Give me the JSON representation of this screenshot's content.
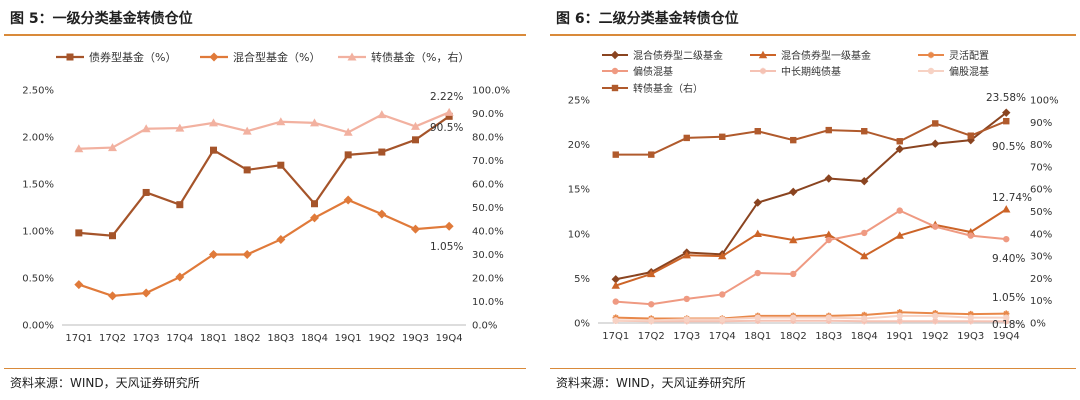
{
  "figures": [
    {
      "title": "图 5：一级分类基金转债仓位",
      "source": "资料来源：WIND，天风证券研究所"
    },
    {
      "title": "图 6：二级分类基金转债仓位",
      "source": "资料来源：WIND，天风证券研究所"
    }
  ],
  "colors": {
    "accent": "#d98a3a",
    "dark_brown": "#a5542a",
    "orange": "#e07a3a",
    "light_pink": "#f2b1a0",
    "salmon": "#ef9a82",
    "pale": "#f5c2b4",
    "peach": "#f0b79a"
  },
  "chart_data": [
    {
      "type": "line",
      "categories": [
        "17Q1",
        "17Q2",
        "17Q3",
        "17Q4",
        "18Q1",
        "18Q2",
        "18Q3",
        "18Q4",
        "19Q1",
        "19Q2",
        "19Q3",
        "19Q4"
      ],
      "yticks_left": [
        "0.00%",
        "0.50%",
        "1.00%",
        "1.50%",
        "2.00%",
        "2.50%"
      ],
      "ylim_left": [
        0,
        2.5
      ],
      "yticks_right": [
        "0.0%",
        "10.0%",
        "20.0%",
        "30.0%",
        "40.0%",
        "50.0%",
        "60.0%",
        "70.0%",
        "80.0%",
        "90.0%",
        "100.0%"
      ],
      "ylim_right": [
        0,
        100
      ],
      "legend_position": "top",
      "grid": false,
      "series": [
        {
          "name": "债券型基金（%）",
          "axis": "left",
          "marker": "square",
          "color": "#a5542a",
          "values": [
            0.98,
            0.95,
            1.41,
            1.28,
            1.86,
            1.65,
            1.7,
            1.29,
            1.81,
            1.84,
            1.97,
            2.22
          ]
        },
        {
          "name": "混合型基金（%）",
          "axis": "left",
          "marker": "diamond",
          "color": "#e07a3a",
          "values": [
            0.43,
            0.31,
            0.34,
            0.51,
            0.75,
            0.75,
            0.91,
            1.14,
            1.33,
            1.18,
            1.02,
            1.05
          ]
        },
        {
          "name": "转债基金（%，右）",
          "axis": "right",
          "marker": "triangle",
          "color": "#f2b1a0",
          "values": [
            75,
            75.5,
            83.5,
            83.8,
            86,
            82.5,
            86.5,
            86,
            82,
            89.5,
            84.5,
            90.5
          ]
        }
      ],
      "annotations": [
        "2.22%",
        "90.5%",
        "1.05%"
      ]
    },
    {
      "type": "line",
      "categories": [
        "17Q1",
        "17Q2",
        "17Q3",
        "17Q4",
        "18Q1",
        "18Q2",
        "18Q3",
        "18Q4",
        "19Q1",
        "19Q2",
        "19Q3",
        "19Q4"
      ],
      "yticks_left": [
        "0%",
        "5%",
        "10%",
        "15%",
        "20%",
        "25%"
      ],
      "ylim_left": [
        0,
        25
      ],
      "yticks_right": [
        "0%",
        "10%",
        "20%",
        "30%",
        "40%",
        "50%",
        "60%",
        "70%",
        "80%",
        "90%",
        "100%"
      ],
      "ylim_right": [
        0,
        100
      ],
      "legend_position": "top",
      "grid": false,
      "series": [
        {
          "name": "混合债券型二级基金",
          "axis": "left",
          "marker": "diamond",
          "color": "#8a4420",
          "values": [
            4.9,
            5.7,
            7.9,
            7.7,
            13.5,
            14.7,
            16.2,
            15.9,
            19.5,
            20.1,
            20.5,
            23.58
          ]
        },
        {
          "name": "混合债券型一级基金",
          "axis": "left",
          "marker": "triangle",
          "color": "#cc6428",
          "values": [
            4.2,
            5.5,
            7.6,
            7.5,
            10.0,
            9.3,
            9.9,
            7.5,
            9.8,
            11.0,
            10.2,
            12.74
          ]
        },
        {
          "name": "灵活配置",
          "axis": "left",
          "marker": "star",
          "color": "#e8884a",
          "values": [
            0.6,
            0.5,
            0.5,
            0.5,
            0.8,
            0.8,
            0.8,
            0.9,
            1.2,
            1.1,
            1.0,
            1.05
          ]
        },
        {
          "name": "偏债混基",
          "axis": "left",
          "marker": "circle",
          "color": "#ef9a82",
          "values": [
            2.4,
            2.1,
            2.7,
            3.2,
            5.6,
            5.5,
            9.3,
            10.1,
            12.6,
            10.8,
            9.8,
            9.4
          ]
        },
        {
          "name": "中长期纯债基",
          "axis": "left",
          "marker": "star",
          "color": "#f5c2b4",
          "values": [
            0.25,
            0.2,
            0.2,
            0.2,
            0.25,
            0.25,
            0.25,
            0.2,
            0.2,
            0.2,
            0.2,
            0.18
          ]
        },
        {
          "name": "偏股混基",
          "axis": "left",
          "marker": "circle",
          "color": "#f7d2c4",
          "values": [
            0.3,
            0.3,
            0.4,
            0.4,
            0.6,
            0.6,
            0.6,
            0.5,
            0.8,
            0.8,
            0.6,
            0.6
          ]
        },
        {
          "name": "转债基金（右）",
          "axis": "right",
          "marker": "square",
          "color": "#b05a2c",
          "values": [
            75.5,
            75.5,
            83,
            83.5,
            86,
            82,
            86.5,
            86,
            81.5,
            89.5,
            84,
            90.5
          ]
        }
      ],
      "annotations": [
        "23.58%",
        "90.5%",
        "12.74%",
        "9.40%",
        "1.05%",
        "0.18%"
      ]
    }
  ]
}
